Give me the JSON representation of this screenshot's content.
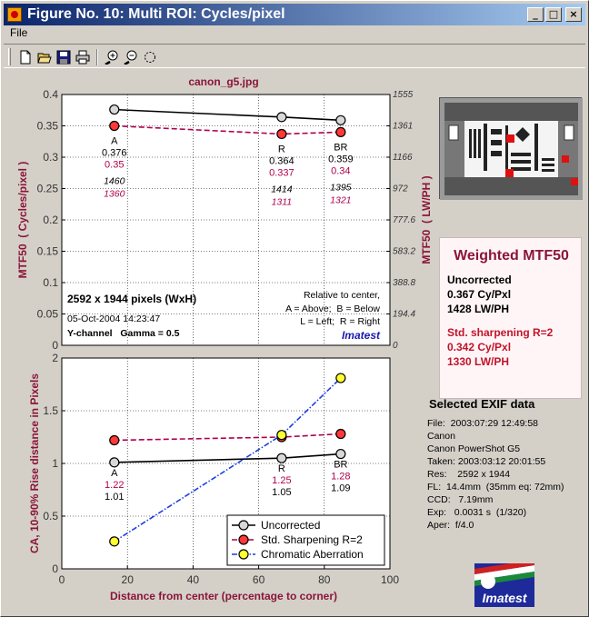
{
  "window": {
    "title": "Figure No. 10: Multi ROI: Cycles/pixel",
    "minimize_glyph": "_",
    "maximize_glyph": "□",
    "close_glyph": "×"
  },
  "menu": {
    "file_label": "File"
  },
  "toolbar": {
    "icons": [
      "new-file-icon",
      "open-folder-icon",
      "save-icon",
      "print-icon",
      "zoom-in-icon",
      "zoom-out-icon",
      "rotate-icon"
    ]
  },
  "image_filename": "canon_g5.jpg",
  "colors": {
    "uncorrected": "#000000",
    "sharpened": "#b0004d",
    "chromatic": "#1a3fe0",
    "accent": "#8b1538"
  },
  "chart_data": [
    {
      "type": "line",
      "title": "canon_g5.jpg",
      "xlabel": "",
      "ylabel": "MTF50  ( Cycles/pixel )",
      "ylabel_right": "MTF50  ( LW/PH )",
      "xlim": [
        0,
        100
      ],
      "ylim": [
        0,
        0.4
      ],
      "yticks": [
        "0",
        "0.05",
        "0.1",
        "0.15",
        "0.2",
        "0.25",
        "0.3",
        "0.35",
        "0.4"
      ],
      "yticks_right": [
        "0",
        "194.4",
        "388.8",
        "583.2",
        "777.6",
        "972",
        "1166",
        "1361",
        "1555"
      ],
      "grid": true,
      "x": [
        16,
        67,
        85
      ],
      "series": [
        {
          "name": "Uncorrected",
          "values": [
            0.376,
            0.364,
            0.359
          ]
        },
        {
          "name": "Std. Sharpening R=2",
          "values": [
            0.35,
            0.337,
            0.34
          ]
        }
      ],
      "point_labels": [
        {
          "region": "A",
          "uncorrected": "0.376",
          "sharpened": "0.35",
          "lwph_uncorrected": "1460",
          "lwph_sharpened": "1360"
        },
        {
          "region": "R",
          "uncorrected": "0.364",
          "sharpened": "0.337",
          "lwph_uncorrected": "1414",
          "lwph_sharpened": "1311"
        },
        {
          "region": "BR",
          "uncorrected": "0.359",
          "sharpened": "0.34",
          "lwph_uncorrected": "1395",
          "lwph_sharpened": "1321"
        }
      ],
      "annotations": {
        "dimensions": "2592 x 1944 pixels (WxH)",
        "date": "05-Oct-2004 14:23:47",
        "channel": "Y-channel   Gamma = 0.5",
        "relative_title": "Relative to center,",
        "relative_ab": "A = Above;  B = Below",
        "relative_lr": "L = Left;  R = Right",
        "brand": "Imatest"
      }
    },
    {
      "type": "line",
      "xlabel": "Distance from center (percentage to corner)",
      "ylabel": "CA, 10-90% Rise distance in Pixels",
      "xlim": [
        0,
        100
      ],
      "ylim": [
        0,
        2
      ],
      "xticks": [
        "0",
        "20",
        "40",
        "60",
        "80",
        "100"
      ],
      "yticks": [
        "0",
        "0.5",
        "1",
        "1.5",
        "2"
      ],
      "grid": true,
      "x": [
        16,
        67,
        85
      ],
      "series": [
        {
          "name": "Uncorrected",
          "values": [
            1.01,
            1.05,
            1.09
          ]
        },
        {
          "name": "Std. Sharpening R=2",
          "values": [
            1.22,
            1.25,
            1.28
          ]
        },
        {
          "name": "Chromatic Aberration",
          "values": [
            0.26,
            1.27,
            1.81
          ]
        }
      ],
      "point_labels": [
        {
          "region": "A",
          "sharpened": "1.22",
          "uncorrected": "1.01"
        },
        {
          "region": "R",
          "sharpened": "1.25",
          "uncorrected": "1.05"
        },
        {
          "region": "BR",
          "sharpened": "1.28",
          "uncorrected": "1.09"
        }
      ],
      "legend_placement": "bottom-right"
    }
  ],
  "weighted_mtf": {
    "title": "Weighted MTF50",
    "uncorrected_label": "Uncorrected",
    "uncorrected_cy": "0.367 Cy/Pxl",
    "uncorrected_lwph": "1428 LW/PH",
    "sharpened_label": "Std. sharpening R=2",
    "sharpened_cy": "0.342 Cy/Pxl",
    "sharpened_lwph": "1330 LW/PH"
  },
  "exif": {
    "title": "Selected EXIF data",
    "lines": [
      "File:  2003:07:29 12:49:58",
      "Canon",
      "Canon PowerShot G5",
      "Taken: 2003:03:12 20:01:55",
      "Res:    2592 x 1944",
      "FL:  14.4mm  (35mm eq: 72mm)",
      "CCD:   7.19mm",
      "Exp:   0.0031 s  (1/320)",
      "Aper:  f/4.0"
    ]
  },
  "logo_text": "Imatest"
}
